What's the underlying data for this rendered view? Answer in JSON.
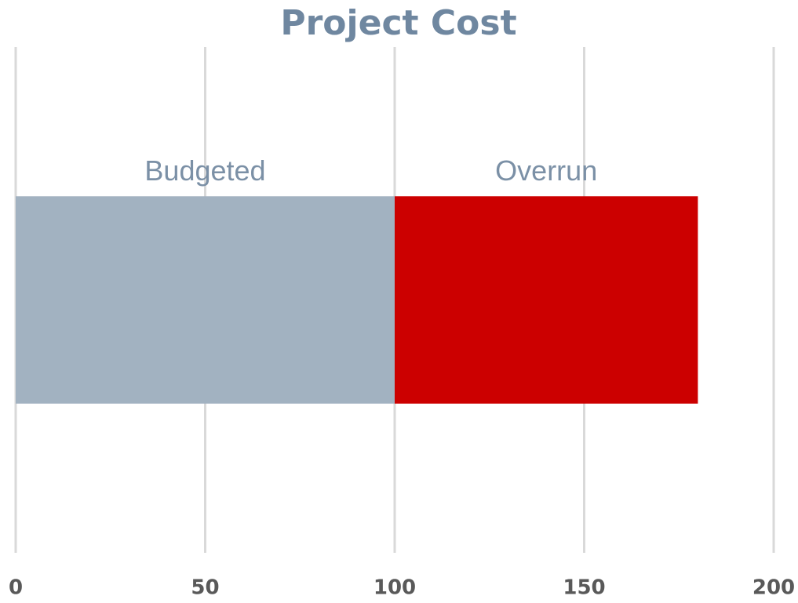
{
  "chart_data": {
    "type": "bar",
    "orientation": "horizontal",
    "stacked": true,
    "title": "Project Cost",
    "categories": [
      null
    ],
    "series": [
      {
        "name": "Budgeted",
        "color": "#a2b2c1",
        "values": [
          100
        ]
      },
      {
        "name": "Overrun",
        "color": "#cc0000",
        "values": [
          80
        ]
      }
    ],
    "xlim": [
      0,
      200
    ],
    "xticks": [
      0,
      50,
      100,
      150,
      200
    ],
    "grid": true
  }
}
